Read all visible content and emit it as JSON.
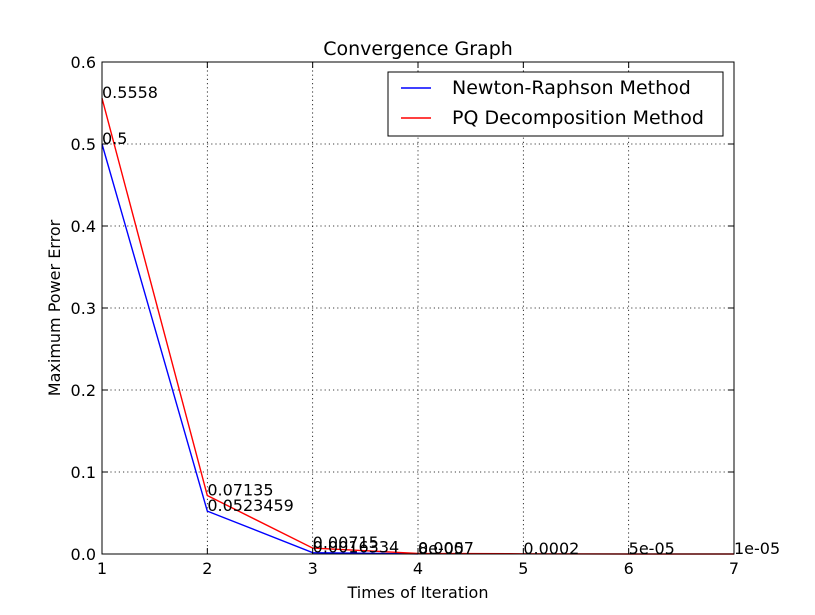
{
  "chart_data": {
    "type": "line",
    "title": "Convergence Graph",
    "xlabel": "Times of Iteration",
    "ylabel": "Maximum Power Error",
    "xlim": [
      1,
      7
    ],
    "ylim": [
      0,
      0.6
    ],
    "x_ticks": [
      "1",
      "2",
      "3",
      "4",
      "5",
      "6",
      "7"
    ],
    "y_ticks": [
      "0.0",
      "0.1",
      "0.2",
      "0.3",
      "0.4",
      "0.5",
      "0.6"
    ],
    "grid": true,
    "legend_position": "top-right",
    "series": [
      {
        "name": "Newton-Raphson Method",
        "color": "#0000ff",
        "x": [
          1,
          2,
          3,
          4
        ],
        "y": [
          0.5,
          0.0523459,
          0.0016334,
          8e-05
        ],
        "labels": [
          "0.5",
          "0.0523459",
          "0.0016334",
          "8e-05"
        ]
      },
      {
        "name": "PQ Decomposition Method",
        "color": "#ff0000",
        "x": [
          1,
          2,
          3,
          4,
          5,
          6,
          7
        ],
        "y": [
          0.5558,
          0.07135,
          0.00715,
          0.0007,
          0.0002,
          5e-05,
          1e-05
        ],
        "labels": [
          "0.5558",
          "0.07135",
          "0.00715",
          "0.0007",
          "0.0002",
          "5e-05",
          "1e-05"
        ]
      }
    ]
  }
}
